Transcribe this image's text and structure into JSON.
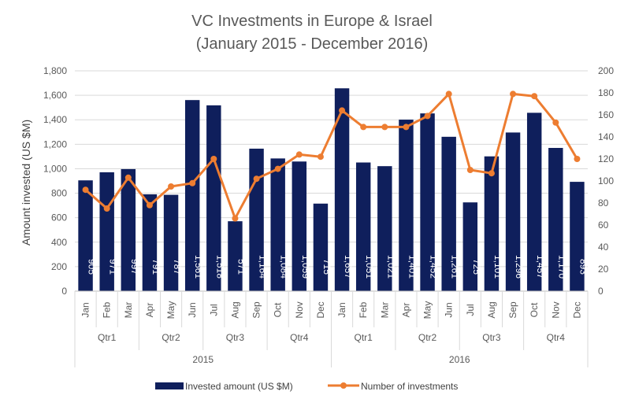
{
  "chart_data": {
    "type": "bar+line",
    "title_line1": "VC Investments in Europe & Israel",
    "title_line2": "(January 2015 - December 2016)",
    "ylabel": "Amount invested (US $M)",
    "y2label": "",
    "ylim": [
      0,
      1800
    ],
    "y2lim": [
      0,
      200
    ],
    "yticks": [
      "0",
      "200",
      "400",
      "600",
      "800",
      "1,000",
      "1,200",
      "1,400",
      "1,600",
      "1,800"
    ],
    "y2ticks": [
      "0",
      "20",
      "40",
      "60",
      "80",
      "100",
      "120",
      "140",
      "160",
      "180",
      "200"
    ],
    "gridlines": true,
    "legend_position": "bottom",
    "categories": [
      "Jan",
      "Feb",
      "Mar",
      "Apr",
      "May",
      "Jun",
      "Jul",
      "Aug",
      "Sep",
      "Oct",
      "Nov",
      "Dec",
      "Jan",
      "Feb",
      "Mar",
      "Apr",
      "May",
      "Jun",
      "Jul",
      "Aug",
      "Sep",
      "Oct",
      "Nov",
      "Dec"
    ],
    "quarters": [
      {
        "label": "Qtr1",
        "span": 3
      },
      {
        "label": "Qtr2",
        "span": 3
      },
      {
        "label": "Qtr3",
        "span": 3
      },
      {
        "label": "Qtr4",
        "span": 3
      },
      {
        "label": "Qtr1",
        "span": 3
      },
      {
        "label": "Qtr2",
        "span": 3
      },
      {
        "label": "Qtr3",
        "span": 3
      },
      {
        "label": "Qtr4",
        "span": 3
      }
    ],
    "years": [
      {
        "label": "2015",
        "span": 12
      },
      {
        "label": "2016",
        "span": 12
      }
    ],
    "series": [
      {
        "name": "Invested amount (US $M)",
        "type": "bar",
        "axis": "left",
        "color": "#0f1f5c",
        "values": [
          905,
          971,
          997,
          791,
          787,
          1561,
          1518,
          571,
          1164,
          1084,
          1059,
          715,
          1657,
          1051,
          1021,
          1401,
          1452,
          1261,
          725,
          1101,
          1296,
          1457,
          1170,
          893
        ],
        "labels": [
          "905",
          "971",
          "997",
          "791",
          "787",
          "1,561",
          "1,518",
          "571",
          "1,164",
          "1,084",
          "1,059",
          "715",
          "1,657",
          "1,051",
          "1,021",
          "1,401",
          "1,452",
          "1,261",
          "725",
          "1,101",
          "1,296",
          "1,457",
          "1,170",
          "893"
        ]
      },
      {
        "name": "Number of investments",
        "type": "line",
        "axis": "right",
        "color": "#ed7d31",
        "values": [
          92,
          75,
          103,
          78,
          95,
          98,
          120,
          66,
          102,
          111,
          124,
          122,
          164,
          149,
          149,
          149,
          159,
          179,
          110,
          107,
          179,
          177,
          153,
          120
        ]
      }
    ]
  }
}
